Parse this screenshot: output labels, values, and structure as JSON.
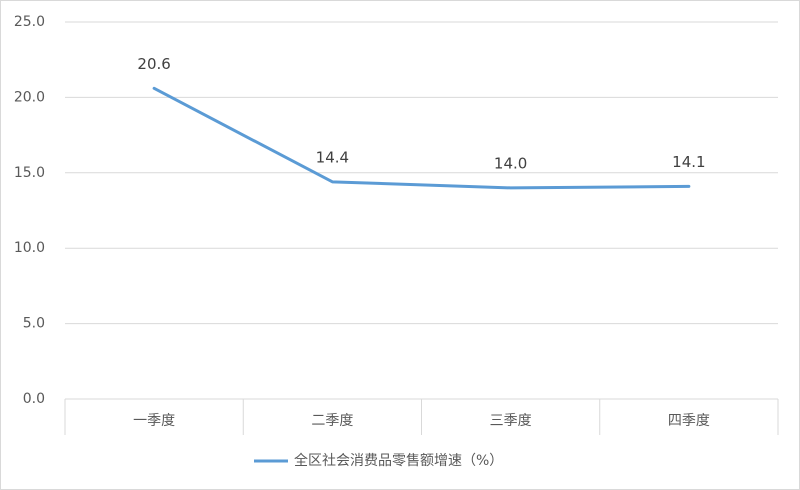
{
  "chart_data": {
    "type": "line",
    "categories": [
      "一季度",
      "二季度",
      "三季度",
      "四季度"
    ],
    "series": [
      {
        "name": "全区社会消费品零售额增速（%）",
        "color": "#5b9bd5",
        "values": [
          20.6,
          14.4,
          14.0,
          14.1
        ],
        "value_labels": [
          "20.6",
          "14.4",
          "14.0",
          "14.1"
        ]
      }
    ],
    "ylim": [
      0,
      25
    ],
    "yticks": [
      {
        "value": 0,
        "label": "0.0"
      },
      {
        "value": 5,
        "label": "5.0"
      },
      {
        "value": 10,
        "label": "10.0"
      },
      {
        "value": 15,
        "label": "15.0"
      },
      {
        "value": 20,
        "label": "20.0"
      },
      {
        "value": 25,
        "label": "25.0"
      }
    ],
    "grid": true,
    "legend": "bottom"
  }
}
